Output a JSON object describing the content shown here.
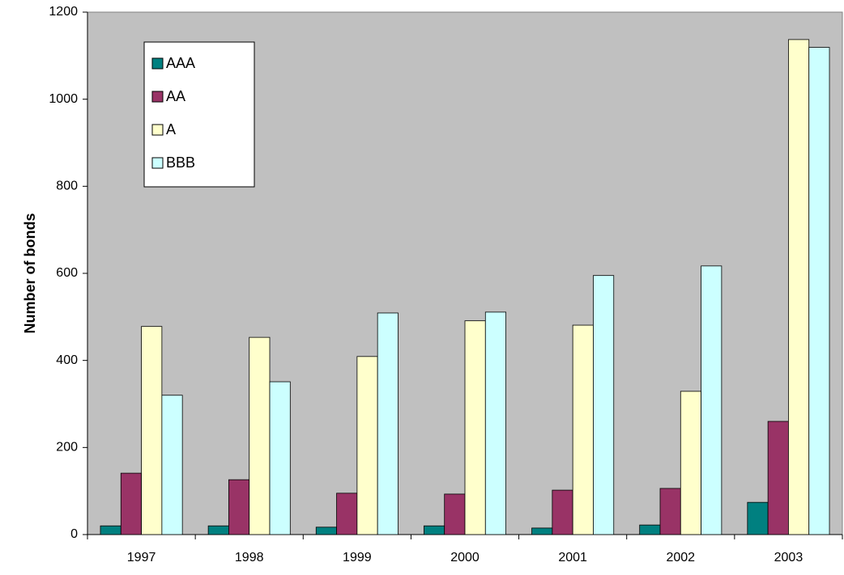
{
  "chart_data": {
    "type": "bar",
    "y_label": "Number of bonds",
    "categories": [
      "1997",
      "1998",
      "1999",
      "2000",
      "2001",
      "2002",
      "2003"
    ],
    "series": [
      {
        "name": "AAA",
        "color": "#008080",
        "values": [
          20,
          20,
          17,
          20,
          15,
          22,
          74
        ]
      },
      {
        "name": "AA",
        "color": "#993366",
        "values": [
          141,
          126,
          95,
          93,
          102,
          106,
          260
        ]
      },
      {
        "name": "A",
        "color": "#ffffcc",
        "values": [
          478,
          453,
          409,
          491,
          481,
          329,
          1137
        ]
      },
      {
        "name": "BBB",
        "color": "#ccffff",
        "values": [
          320,
          351,
          509,
          511,
          595,
          617,
          1119
        ]
      }
    ],
    "ylim": [
      0,
      1200
    ],
    "yticks": [
      0,
      200,
      400,
      600,
      800,
      1000,
      1200
    ],
    "plot_background": "#c0c0c0",
    "legend": "upper-left"
  }
}
